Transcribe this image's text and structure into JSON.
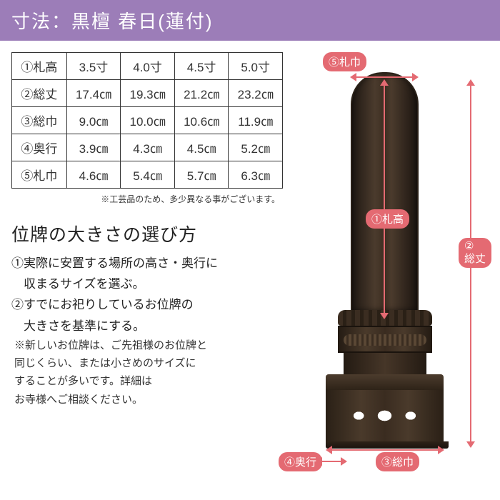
{
  "banner": {
    "title": "寸法：黒檀 春日(蓮付)"
  },
  "table": {
    "rows": [
      [
        "①札高",
        "3.5寸",
        "4.0寸",
        "4.5寸",
        "5.0寸"
      ],
      [
        "②総丈",
        "17.4㎝",
        "19.3㎝",
        "21.2㎝",
        "23.2㎝"
      ],
      [
        "③総巾",
        "9.0㎝",
        "10.0㎝",
        "10.6㎝",
        "11.9㎝"
      ],
      [
        "④奥行",
        "3.9㎝",
        "4.3㎝",
        "4.5㎝",
        "5.2㎝"
      ],
      [
        "⑤札巾",
        "4.6㎝",
        "5.4㎝",
        "5.7㎝",
        "6.3㎝"
      ]
    ],
    "note": "※工芸品のため、多少異なる事がございます。"
  },
  "guide": {
    "title": "位牌の大きさの選び方",
    "p1a": "①実際に安置する場所の高さ・奥行に",
    "p1b": "　収まるサイズを選ぶ。",
    "p2a": "②すでにお祀りしているお位牌の",
    "p2b": "　大きさを基準にする。",
    "sub1": "※新しいお位牌は、ご先祖様のお位牌と",
    "sub2": "同じくらい、または小さめのサイズに",
    "sub3": "することが多いです。詳細は",
    "sub4": "お寺様へご相談ください。"
  },
  "labels": {
    "d1": "①札高",
    "d2": "②\n総丈",
    "d2a": "②",
    "d2b": "総丈",
    "d3": "③総巾",
    "d4": "④奥行",
    "d5": "⑤札巾"
  },
  "colors": {
    "banner_bg": "#9c7db8",
    "accent": "#e46a72",
    "border": "#333333"
  }
}
